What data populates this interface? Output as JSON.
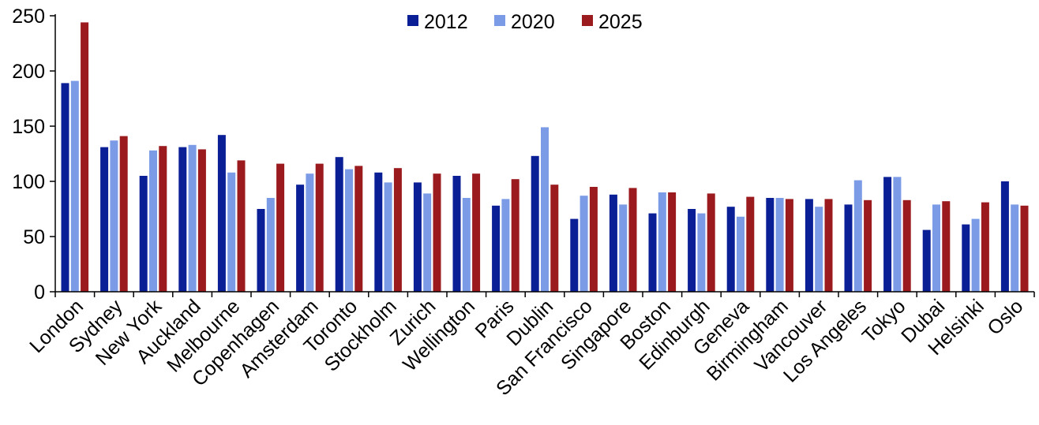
{
  "chart_data": {
    "type": "bar",
    "title": "",
    "xlabel": "",
    "ylabel": "",
    "ylim": [
      0,
      250
    ],
    "yticks": [
      0,
      50,
      100,
      150,
      200,
      250
    ],
    "legend_position": "top-center",
    "grid": false,
    "categories": [
      "London",
      "Sydney",
      "New York",
      "Auckland",
      "Melbourne",
      "Copenhagen",
      "Amsterdam",
      "Toronto",
      "Stockholm",
      "Zurich",
      "Wellington",
      "Paris",
      "Dublin",
      "San Francisco",
      "Singapore",
      "Boston",
      "Edinburgh",
      "Geneva",
      "Birmingham",
      "Vancouver",
      "Los Angeles",
      "Tokyo",
      "Dubai",
      "Helsinki",
      "Oslo"
    ],
    "series": [
      {
        "name": "2012",
        "color": "#0a1e96",
        "values": [
          189,
          131,
          105,
          131,
          142,
          75,
          97,
          122,
          108,
          99,
          105,
          78,
          123,
          66,
          88,
          71,
          75,
          77,
          85,
          84,
          79,
          104,
          56,
          61,
          100
        ]
      },
      {
        "name": "2020",
        "color": "#7b9be6",
        "values": [
          191,
          137,
          128,
          133,
          108,
          85,
          107,
          111,
          99,
          89,
          85,
          84,
          149,
          87,
          79,
          90,
          71,
          68,
          85,
          77,
          101,
          104,
          79,
          66,
          79
        ]
      },
      {
        "name": "2025",
        "color": "#9a1a1d",
        "values": [
          244,
          141,
          132,
          129,
          119,
          116,
          116,
          114,
          112,
          107,
          107,
          102,
          97,
          95,
          94,
          90,
          89,
          86,
          84,
          84,
          83,
          83,
          82,
          81,
          78
        ]
      }
    ]
  }
}
